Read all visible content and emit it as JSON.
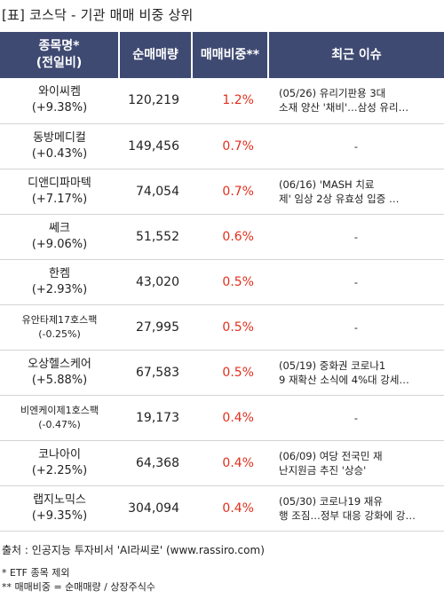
{
  "title": "[표] 코스닥 - 기관 매매 비중 상위",
  "headers": {
    "name_line1": "종목명*",
    "name_line2": "(전일비)",
    "qty": "순매매량",
    "ratio": "매매비중**",
    "issue": "최근 이슈"
  },
  "rows": [
    {
      "name": "와이씨켐",
      "change": "(+9.38%)",
      "qty": "120,219",
      "ratio": "1.2%",
      "issue1": "(05/26) 유리기판용 3대",
      "issue2": "소재 양산 '채비'…삼성 유리…"
    },
    {
      "name": "동방메디컬",
      "change": "(+0.43%)",
      "qty": "149,456",
      "ratio": "0.7%",
      "issue1": "-",
      "issue2": ""
    },
    {
      "name": "디앤디파마텍",
      "change": "(+7.17%)",
      "qty": "74,054",
      "ratio": "0.7%",
      "issue1": "(06/16) 'MASH 치료",
      "issue2": "제' 임상 2상 유효성 입증 …"
    },
    {
      "name": "쎄크",
      "change": "(+9.06%)",
      "qty": "51,552",
      "ratio": "0.6%",
      "issue1": "-",
      "issue2": ""
    },
    {
      "name": "한켐",
      "change": "(+2.93%)",
      "qty": "43,020",
      "ratio": "0.5%",
      "issue1": "-",
      "issue2": ""
    },
    {
      "name": "유안타제17호스팩",
      "change": "(-0.25%)",
      "qty": "27,995",
      "ratio": "0.5%",
      "issue1": "-",
      "issue2": ""
    },
    {
      "name": "오상헬스케어",
      "change": "(+5.88%)",
      "qty": "67,583",
      "ratio": "0.5%",
      "issue1": "(05/19) 중화권 코로나1",
      "issue2": "9 재확산 소식에 4%대 강세…"
    },
    {
      "name": "비엔케이제1호스팩",
      "change": "(-0.47%)",
      "qty": "19,173",
      "ratio": "0.4%",
      "issue1": "-",
      "issue2": ""
    },
    {
      "name": "코나아이",
      "change": "(+2.25%)",
      "qty": "64,368",
      "ratio": "0.4%",
      "issue1": "(06/09) 여당 전국민 재",
      "issue2": "난지원금 추진 '상승'"
    },
    {
      "name": "랩지노믹스",
      "change": "(+9.35%)",
      "qty": "304,094",
      "ratio": "0.4%",
      "issue1": "(05/30) 코로나19 재유",
      "issue2": "행 조짐…정부 대응 강화에 강…"
    }
  ],
  "source": "출처 : 인공지능 투자비서 'AI라씨로' (www.rassiro.com)",
  "note1": "* ETF 종목 제외",
  "note2": "** 매매비중 = 순매매량 / 상장주식수"
}
